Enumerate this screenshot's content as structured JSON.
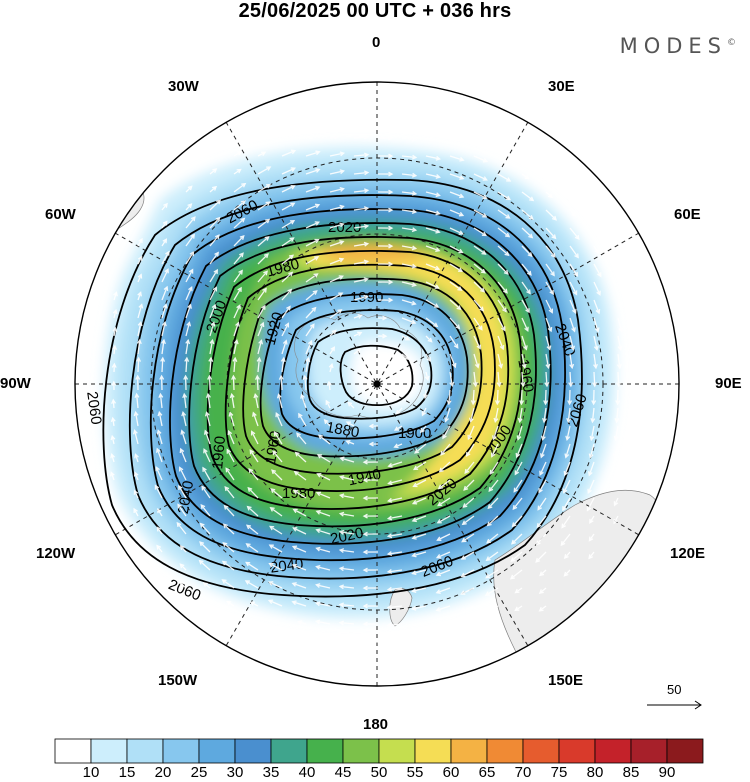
{
  "title": "25/06/2025  00 UTC  + 036 hrs",
  "brand": "MODES",
  "brand_mark": "©",
  "map": {
    "projection": "south-polar-stereographic",
    "longitude_labels": {
      "top": "0",
      "top_left": "30W",
      "top_right": "30E",
      "upper_left": "60W",
      "upper_right": "60E",
      "left": "90W",
      "right": "90E",
      "lower_left": "120W",
      "lower_right": "120E",
      "bottom_left": "150W",
      "bottom_right": "150E",
      "bottom": "180"
    },
    "contour_labels": [
      "2060",
      "2020",
      "1980",
      "1990",
      "2000",
      "1920",
      "2040",
      "1960",
      "1880",
      "1900",
      "1940",
      "1980",
      "2000",
      "2020",
      "1960",
      "2060",
      "2060",
      "2040",
      "2060",
      "2020",
      "2040",
      "1960",
      "2060"
    ],
    "colors": {
      "land": "#ededed",
      "coast": "#808080",
      "contour": "#000000",
      "arrow": "#ffffff"
    }
  },
  "reference_vector": {
    "label": "50"
  },
  "colorbar": {
    "ticks": [
      "10",
      "15",
      "20",
      "25",
      "30",
      "35",
      "40",
      "45",
      "50",
      "55",
      "60",
      "65",
      "70",
      "75",
      "80",
      "85",
      "90"
    ],
    "colors": [
      "#ffffff",
      "#cdeefc",
      "#b0e0f7",
      "#87c7ee",
      "#5ea9df",
      "#4a8fcf",
      "#3fa58d",
      "#46b14c",
      "#7cc14a",
      "#c5de4f",
      "#f5dd55",
      "#f4b244",
      "#f08a34",
      "#e65c2e",
      "#d93a2b",
      "#c4222a",
      "#a7202a",
      "#8b1a1d"
    ]
  }
}
